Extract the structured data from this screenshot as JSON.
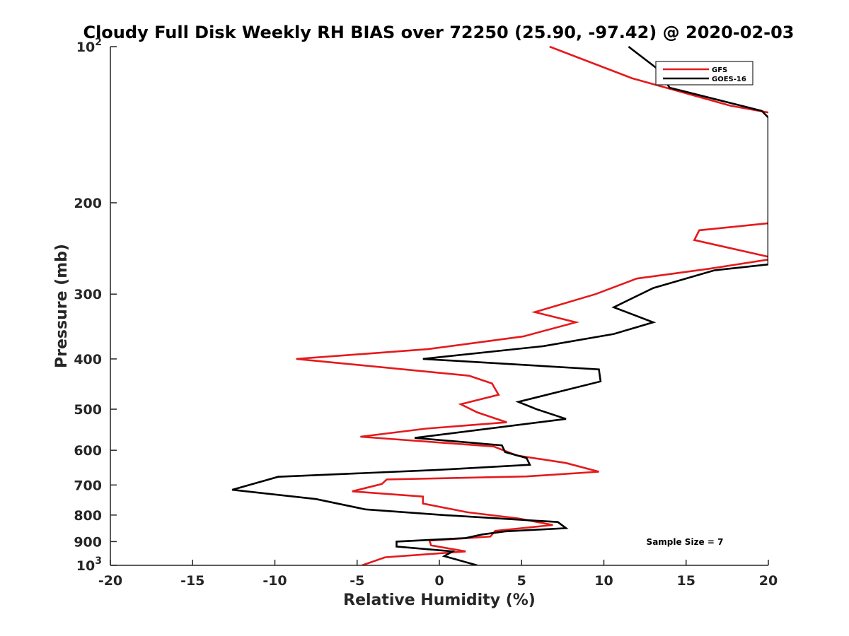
{
  "chart_data": {
    "type": "line",
    "title": "Cloudy Full Disk Weekly RH BIAS over 72250 (25.90, -97.42) @ 2020-02-03",
    "xlabel": "Relative Humidity (%)",
    "ylabel": "Pressure (mb)",
    "xlim": [
      -20,
      20
    ],
    "ylim": [
      100,
      1000
    ],
    "yscale": "log",
    "y_reversed": true,
    "grid": false,
    "legend_position": "top-right",
    "x_ticks": [
      -20,
      -15,
      -10,
      -5,
      0,
      5,
      10,
      15,
      20
    ],
    "x_tick_labels": [
      "-20",
      "-15",
      "-10",
      "-5",
      "0",
      "5",
      "10",
      "15",
      "20"
    ],
    "y_ticks": [
      100,
      200,
      300,
      400,
      500,
      600,
      700,
      800,
      900,
      1000
    ],
    "y_tick_labels": [
      "",
      "200",
      "300",
      "400",
      "500",
      "600",
      "700",
      "800",
      "900",
      ""
    ],
    "y_top_label": {
      "base": "10",
      "exp": "2"
    },
    "y_bottom_label": {
      "base": "10",
      "exp": "3"
    },
    "annotation": "Sample Size = 7",
    "series": [
      {
        "name": "GFS",
        "color": "#e41a1c",
        "points": [
          [
            6.7,
            100
          ],
          [
            11.7,
            115
          ],
          [
            17.7,
            130
          ],
          [
            20.6,
            135
          ],
          [
            20,
            219
          ],
          [
            15.8,
            226
          ],
          [
            15.5,
            236
          ],
          [
            20.2,
            255
          ],
          [
            20.1,
            257
          ],
          [
            16.4,
            268
          ],
          [
            12.0,
            280
          ],
          [
            9.5,
            300
          ],
          [
            5.8,
            325
          ],
          [
            8.3,
            340
          ],
          [
            5.1,
            362
          ],
          [
            -0.7,
            383
          ],
          [
            -8.7,
            400
          ],
          [
            1.8,
            431
          ],
          [
            3.2,
            446
          ],
          [
            3.6,
            469
          ],
          [
            1.3,
            489
          ],
          [
            2.3,
            507
          ],
          [
            4.1,
            530
          ],
          [
            -0.8,
            545
          ],
          [
            -4.8,
            565
          ],
          [
            3.3,
            590
          ],
          [
            4.7,
            614
          ],
          [
            7.7,
            635
          ],
          [
            9.7,
            660
          ],
          [
            5.3,
            674
          ],
          [
            -3.2,
            683
          ],
          [
            -3.5,
            697
          ],
          [
            -5.3,
            720
          ],
          [
            -1.0,
            737
          ],
          [
            -1.0,
            760
          ],
          [
            1.7,
            790
          ],
          [
            4.8,
            812
          ],
          [
            6.9,
            836
          ],
          [
            3.4,
            858
          ],
          [
            3.1,
            880
          ],
          [
            -0.6,
            896
          ],
          [
            -0.5,
            915
          ],
          [
            1.6,
            940
          ],
          [
            -3.3,
            965
          ],
          [
            -4.7,
            1000
          ]
        ]
      },
      {
        "name": "GOES-16",
        "color": "#000000",
        "points": [
          [
            11.5,
            100
          ],
          [
            13.2,
            110
          ],
          [
            14.0,
            120
          ],
          [
            19.6,
            133
          ],
          [
            20,
            137
          ],
          [
            20,
            263
          ],
          [
            16.7,
            270
          ],
          [
            13.0,
            292
          ],
          [
            10.6,
            318
          ],
          [
            13.0,
            340
          ],
          [
            10.6,
            358
          ],
          [
            6.3,
            378
          ],
          [
            -1.0,
            400
          ],
          [
            9.7,
            419
          ],
          [
            9.8,
            442
          ],
          [
            4.8,
            484
          ],
          [
            5.9,
            500
          ],
          [
            7.7,
            522
          ],
          [
            -1.5,
            568
          ],
          [
            3.8,
            587
          ],
          [
            4.0,
            605
          ],
          [
            5.3,
            621
          ],
          [
            5.5,
            640
          ],
          [
            -0.2,
            655
          ],
          [
            -9.8,
            675
          ],
          [
            -12.6,
            715
          ],
          [
            -7.5,
            745
          ],
          [
            -4.5,
            780
          ],
          [
            0.3,
            800
          ],
          [
            7.2,
            825
          ],
          [
            7.7,
            848
          ],
          [
            4.0,
            860
          ],
          [
            2.6,
            872
          ],
          [
            1.6,
            886
          ],
          [
            -2.6,
            900
          ],
          [
            -2.6,
            920
          ],
          [
            0.8,
            940
          ],
          [
            0.3,
            960
          ],
          [
            2.3,
            1000
          ]
        ]
      }
    ]
  }
}
